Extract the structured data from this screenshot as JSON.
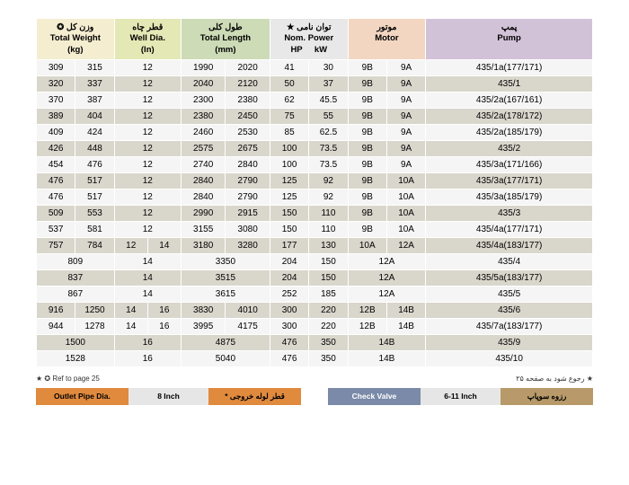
{
  "headers": {
    "weight_fa": "وزن کل",
    "weight_en": "Total Weight",
    "weight_unit": "(kg)",
    "well_fa": "قطر چاه",
    "well_en": "Well Dia.",
    "well_unit": "(In)",
    "len_fa": "طول کلی",
    "len_en": "Total Length",
    "len_unit": "(mm)",
    "pow_fa": "توان نامی",
    "pow_en": "Nom. Power",
    "pow_hp": "HP",
    "pow_kw": "kW",
    "motor_fa": "موتور",
    "motor_en": "Motor",
    "pump_fa": "پمپ",
    "pump_en": "Pump"
  },
  "rows": [
    {
      "w": [
        "309",
        "315"
      ],
      "well": [
        "12",
        ""
      ],
      "len": [
        "1990",
        "2020"
      ],
      "hp": "41",
      "kw": "30",
      "m": [
        "9B",
        "9A"
      ],
      "pump": "435/1a(177/171)",
      "cls": "odd"
    },
    {
      "w": [
        "320",
        "337"
      ],
      "well": [
        "12",
        ""
      ],
      "len": [
        "2040",
        "2120"
      ],
      "hp": "50",
      "kw": "37",
      "m": [
        "9B",
        "9A"
      ],
      "pump": "435/1",
      "cls": "even"
    },
    {
      "w": [
        "370",
        "387"
      ],
      "well": [
        "12",
        ""
      ],
      "len": [
        "2300",
        "2380"
      ],
      "hp": "62",
      "kw": "45.5",
      "m": [
        "9B",
        "9A"
      ],
      "pump": "435/2a(167/161)",
      "cls": "odd"
    },
    {
      "w": [
        "389",
        "404"
      ],
      "well": [
        "12",
        ""
      ],
      "len": [
        "2380",
        "2450"
      ],
      "hp": "75",
      "kw": "55",
      "m": [
        "9B",
        "9A"
      ],
      "pump": "435/2a(178/172)",
      "cls": "even"
    },
    {
      "w": [
        "409",
        "424"
      ],
      "well": [
        "12",
        ""
      ],
      "len": [
        "2460",
        "2530"
      ],
      "hp": "85",
      "kw": "62.5",
      "m": [
        "9B",
        "9A"
      ],
      "pump": "435/2a(185/179)",
      "cls": "odd"
    },
    {
      "w": [
        "426",
        "448"
      ],
      "well": [
        "12",
        ""
      ],
      "len": [
        "2575",
        "2675"
      ],
      "hp": "100",
      "kw": "73.5",
      "m": [
        "9B",
        "9A"
      ],
      "pump": "435/2",
      "cls": "even"
    },
    {
      "w": [
        "454",
        "476"
      ],
      "well": [
        "12",
        ""
      ],
      "len": [
        "2740",
        "2840"
      ],
      "hp": "100",
      "kw": "73.5",
      "m": [
        "9B",
        "9A"
      ],
      "pump": "435/3a(171/166)",
      "cls": "odd"
    },
    {
      "w": [
        "476",
        "517"
      ],
      "well": [
        "12",
        ""
      ],
      "len": [
        "2840",
        "2790"
      ],
      "hp": "125",
      "kw": "92",
      "m": [
        "9B",
        "10A"
      ],
      "pump": "435/3a(177/171)",
      "cls": "even"
    },
    {
      "w": [
        "476",
        "517"
      ],
      "well": [
        "12",
        ""
      ],
      "len": [
        "2840",
        "2790"
      ],
      "hp": "125",
      "kw": "92",
      "m": [
        "9B",
        "10A"
      ],
      "pump": "435/3a(185/179)",
      "cls": "odd"
    },
    {
      "w": [
        "509",
        "553"
      ],
      "well": [
        "12",
        ""
      ],
      "len": [
        "2990",
        "2915"
      ],
      "hp": "150",
      "kw": "110",
      "m": [
        "9B",
        "10A"
      ],
      "pump": "435/3",
      "cls": "even"
    },
    {
      "w": [
        "537",
        "581"
      ],
      "well": [
        "12",
        ""
      ],
      "len": [
        "3155",
        "3080"
      ],
      "hp": "150",
      "kw": "110",
      "m": [
        "9B",
        "10A"
      ],
      "pump": "435/4a(177/171)",
      "cls": "odd"
    },
    {
      "w": [
        "757",
        "784"
      ],
      "well": [
        "12",
        "14"
      ],
      "len": [
        "3180",
        "3280"
      ],
      "hp": "177",
      "kw": "130",
      "m": [
        "10A",
        "12A"
      ],
      "pump": "435/4a(183/177)",
      "cls": "even"
    },
    {
      "w": [
        "809",
        ""
      ],
      "well": [
        "14",
        ""
      ],
      "len": [
        "3350",
        ""
      ],
      "hp": "204",
      "kw": "150",
      "m": [
        "12A",
        ""
      ],
      "pump": "435/4",
      "cls": "odd"
    },
    {
      "w": [
        "837",
        ""
      ],
      "well": [
        "14",
        ""
      ],
      "len": [
        "3515",
        ""
      ],
      "hp": "204",
      "kw": "150",
      "m": [
        "12A",
        ""
      ],
      "pump": "435/5a(183/177)",
      "cls": "even"
    },
    {
      "w": [
        "867",
        ""
      ],
      "well": [
        "14",
        ""
      ],
      "len": [
        "3615",
        ""
      ],
      "hp": "252",
      "kw": "185",
      "m": [
        "12A",
        ""
      ],
      "pump": "435/5",
      "cls": "odd"
    },
    {
      "w": [
        "916",
        "1250"
      ],
      "well": [
        "14",
        "16"
      ],
      "len": [
        "3830",
        "4010"
      ],
      "hp": "300",
      "kw": "220",
      "m": [
        "12B",
        "14B"
      ],
      "pump": "435/6",
      "cls": "even"
    },
    {
      "w": [
        "944",
        "1278"
      ],
      "well": [
        "14",
        "16"
      ],
      "len": [
        "3995",
        "4175"
      ],
      "hp": "300",
      "kw": "220",
      "m": [
        "12B",
        "14B"
      ],
      "pump": "435/7a(183/177)",
      "cls": "odd"
    },
    {
      "w": [
        "1500",
        ""
      ],
      "well": [
        "16",
        ""
      ],
      "len": [
        "4875",
        ""
      ],
      "hp": "476",
      "kw": "350",
      "m": [
        "14B",
        ""
      ],
      "pump": "435/9",
      "cls": "even"
    },
    {
      "w": [
        "1528",
        ""
      ],
      "well": [
        "16",
        ""
      ],
      "len": [
        "5040",
        ""
      ],
      "hp": "476",
      "kw": "350",
      "m": [
        "14B",
        ""
      ],
      "pump": "435/10",
      "cls": "odd"
    }
  ],
  "footnote_left": "Ref to page 25",
  "footnote_right": "رجوع شود به صفحه ۲۵",
  "bar1": {
    "en": "Outlet Pipe Dia.",
    "val": "8 Inch",
    "fa": "قطر لوله خروجی *"
  },
  "bar2": {
    "en": "Check Valve",
    "val": "6-11 Inch",
    "fa": "رزوه سوپاپ"
  }
}
